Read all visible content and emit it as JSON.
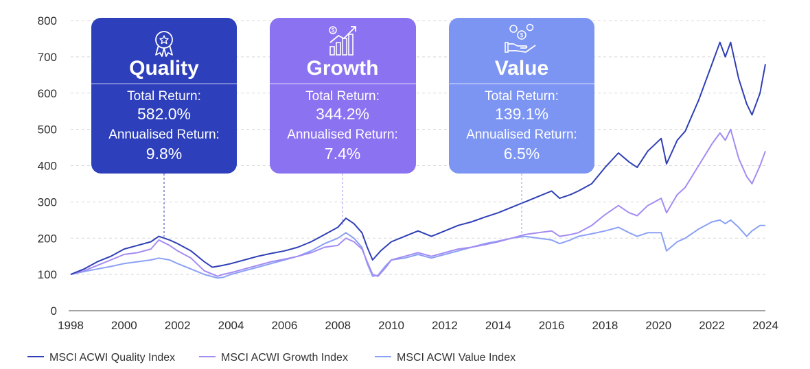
{
  "chart_data": {
    "type": "line",
    "xlim": [
      1998,
      2024
    ],
    "ylim": [
      0,
      800
    ],
    "xticks": [
      "1998",
      "2000",
      "2002",
      "2004",
      "2006",
      "2008",
      "2010",
      "2012",
      "2014",
      "2016",
      "2018",
      "2020",
      "2022",
      "2024"
    ],
    "yticks": [
      "0",
      "100",
      "200",
      "300",
      "400",
      "500",
      "600",
      "700",
      "800"
    ],
    "grid": "horizontal dashed",
    "legend": "bottom-left",
    "series": [
      {
        "name": "MSCI ACWI Quality Index",
        "color": "#2e3fb5",
        "points": [
          [
            1998,
            100
          ],
          [
            1998.5,
            115
          ],
          [
            1999,
            135
          ],
          [
            1999.5,
            150
          ],
          [
            2000,
            170
          ],
          [
            2000.5,
            180
          ],
          [
            2001,
            190
          ],
          [
            2001.3,
            205
          ],
          [
            2001.7,
            195
          ],
          [
            2002,
            185
          ],
          [
            2002.5,
            165
          ],
          [
            2003,
            135
          ],
          [
            2003.3,
            120
          ],
          [
            2003.7,
            125
          ],
          [
            2004,
            130
          ],
          [
            2004.5,
            140
          ],
          [
            2005,
            150
          ],
          [
            2005.5,
            158
          ],
          [
            2006,
            165
          ],
          [
            2006.5,
            175
          ],
          [
            2007,
            190
          ],
          [
            2007.5,
            210
          ],
          [
            2008,
            230
          ],
          [
            2008.3,
            255
          ],
          [
            2008.6,
            240
          ],
          [
            2008.9,
            215
          ],
          [
            2009.1,
            175
          ],
          [
            2009.3,
            140
          ],
          [
            2009.6,
            165
          ],
          [
            2010,
            190
          ],
          [
            2010.5,
            205
          ],
          [
            2011,
            220
          ],
          [
            2011.5,
            205
          ],
          [
            2012,
            220
          ],
          [
            2012.5,
            235
          ],
          [
            2013,
            245
          ],
          [
            2013.5,
            258
          ],
          [
            2014,
            270
          ],
          [
            2014.5,
            285
          ],
          [
            2015,
            300
          ],
          [
            2015.5,
            315
          ],
          [
            2016,
            330
          ],
          [
            2016.3,
            310
          ],
          [
            2016.7,
            320
          ],
          [
            2017,
            330
          ],
          [
            2017.5,
            350
          ],
          [
            2018,
            395
          ],
          [
            2018.5,
            435
          ],
          [
            2018.9,
            410
          ],
          [
            2019.2,
            395
          ],
          [
            2019.6,
            440
          ],
          [
            2020.1,
            475
          ],
          [
            2020.3,
            405
          ],
          [
            2020.7,
            470
          ],
          [
            2021,
            495
          ],
          [
            2021.5,
            580
          ],
          [
            2022,
            680
          ],
          [
            2022.3,
            740
          ],
          [
            2022.5,
            700
          ],
          [
            2022.7,
            740
          ],
          [
            2023,
            640
          ],
          [
            2023.3,
            570
          ],
          [
            2023.5,
            540
          ],
          [
            2023.8,
            600
          ],
          [
            2024,
            680
          ]
        ]
      },
      {
        "name": "MSCI ACWI Growth Index",
        "color": "#a48bf2",
        "points": [
          [
            1998,
            100
          ],
          [
            1998.5,
            110
          ],
          [
            1999,
            125
          ],
          [
            1999.5,
            140
          ],
          [
            2000,
            155
          ],
          [
            2000.5,
            160
          ],
          [
            2001,
            170
          ],
          [
            2001.3,
            195
          ],
          [
            2001.7,
            180
          ],
          [
            2002,
            165
          ],
          [
            2002.5,
            145
          ],
          [
            2003,
            110
          ],
          [
            2003.5,
            95
          ],
          [
            2003.7,
            100
          ],
          [
            2004,
            105
          ],
          [
            2004.5,
            115
          ],
          [
            2005,
            125
          ],
          [
            2005.5,
            135
          ],
          [
            2006,
            142
          ],
          [
            2006.5,
            150
          ],
          [
            2007,
            160
          ],
          [
            2007.5,
            175
          ],
          [
            2008,
            180
          ],
          [
            2008.3,
            200
          ],
          [
            2008.6,
            190
          ],
          [
            2008.9,
            170
          ],
          [
            2009.1,
            135
          ],
          [
            2009.3,
            100
          ],
          [
            2009.5,
            95
          ],
          [
            2009.8,
            120
          ],
          [
            2010,
            140
          ],
          [
            2010.5,
            150
          ],
          [
            2011,
            160
          ],
          [
            2011.5,
            150
          ],
          [
            2012,
            160
          ],
          [
            2012.5,
            170
          ],
          [
            2013,
            175
          ],
          [
            2013.5,
            182
          ],
          [
            2014,
            190
          ],
          [
            2014.5,
            200
          ],
          [
            2015,
            210
          ],
          [
            2015.5,
            215
          ],
          [
            2016,
            220
          ],
          [
            2016.3,
            205
          ],
          [
            2016.7,
            210
          ],
          [
            2017,
            215
          ],
          [
            2017.5,
            235
          ],
          [
            2018,
            265
          ],
          [
            2018.5,
            290
          ],
          [
            2018.9,
            270
          ],
          [
            2019.2,
            262
          ],
          [
            2019.6,
            290
          ],
          [
            2020.1,
            310
          ],
          [
            2020.3,
            270
          ],
          [
            2020.7,
            320
          ],
          [
            2021,
            340
          ],
          [
            2021.5,
            400
          ],
          [
            2022,
            460
          ],
          [
            2022.3,
            490
          ],
          [
            2022.5,
            470
          ],
          [
            2022.7,
            500
          ],
          [
            2023,
            420
          ],
          [
            2023.3,
            370
          ],
          [
            2023.5,
            350
          ],
          [
            2023.8,
            400
          ],
          [
            2024,
            440
          ]
        ]
      },
      {
        "name": "MSCI ACWI Value Index",
        "color": "#8aa0f5",
        "points": [
          [
            1998,
            100
          ],
          [
            1998.5,
            108
          ],
          [
            1999,
            115
          ],
          [
            1999.5,
            122
          ],
          [
            2000,
            130
          ],
          [
            2000.5,
            135
          ],
          [
            2001,
            140
          ],
          [
            2001.3,
            145
          ],
          [
            2001.7,
            140
          ],
          [
            2002,
            130
          ],
          [
            2002.5,
            115
          ],
          [
            2003,
            100
          ],
          [
            2003.5,
            90
          ],
          [
            2003.7,
            92
          ],
          [
            2004,
            100
          ],
          [
            2004.5,
            110
          ],
          [
            2005,
            120
          ],
          [
            2005.5,
            130
          ],
          [
            2006,
            140
          ],
          [
            2006.5,
            150
          ],
          [
            2007,
            165
          ],
          [
            2007.5,
            185
          ],
          [
            2008,
            200
          ],
          [
            2008.3,
            215
          ],
          [
            2008.6,
            200
          ],
          [
            2008.9,
            175
          ],
          [
            2009.1,
            130
          ],
          [
            2009.3,
            95
          ],
          [
            2009.5,
            98
          ],
          [
            2009.8,
            125
          ],
          [
            2010,
            140
          ],
          [
            2010.5,
            145
          ],
          [
            2011,
            155
          ],
          [
            2011.5,
            145
          ],
          [
            2012,
            155
          ],
          [
            2012.5,
            165
          ],
          [
            2013,
            175
          ],
          [
            2013.5,
            185
          ],
          [
            2014,
            192
          ],
          [
            2014.5,
            200
          ],
          [
            2015,
            205
          ],
          [
            2015.5,
            200
          ],
          [
            2016,
            195
          ],
          [
            2016.3,
            185
          ],
          [
            2016.7,
            195
          ],
          [
            2017,
            205
          ],
          [
            2017.5,
            212
          ],
          [
            2018,
            220
          ],
          [
            2018.5,
            230
          ],
          [
            2018.9,
            215
          ],
          [
            2019.2,
            205
          ],
          [
            2019.6,
            215
          ],
          [
            2020.1,
            215
          ],
          [
            2020.3,
            165
          ],
          [
            2020.7,
            190
          ],
          [
            2021,
            200
          ],
          [
            2021.5,
            225
          ],
          [
            2022,
            245
          ],
          [
            2022.3,
            250
          ],
          [
            2022.5,
            240
          ],
          [
            2022.7,
            250
          ],
          [
            2023,
            230
          ],
          [
            2023.3,
            205
          ],
          [
            2023.5,
            220
          ],
          [
            2023.8,
            235
          ],
          [
            2024,
            235
          ]
        ]
      }
    ]
  },
  "cards": [
    {
      "title": "Quality",
      "label1": "Total Return:",
      "value1": "582.0%",
      "label2": "Annualised Return:",
      "value2": "9.8%",
      "color": "#2d3fbb",
      "icon": "award-ribbon-icon"
    },
    {
      "title": "Growth",
      "label1": "Total Return:",
      "value1": "344.2%",
      "label2": "Annualised Return:",
      "value2": "7.4%",
      "color": "#8b72f0",
      "icon": "growth-bar-chart-icon"
    },
    {
      "title": "Value",
      "label1": "Total Return:",
      "value1": "139.1%",
      "label2": "Annualised Return:",
      "value2": "6.5%",
      "color": "#7c95f3",
      "icon": "money-hand-icon"
    }
  ],
  "legend": [
    {
      "label": "MSCI ACWI Quality Index",
      "color": "#2e3fb5"
    },
    {
      "label": "MSCI ACWI Growth Index",
      "color": "#a48bf2"
    },
    {
      "label": "MSCI ACWI Value Index",
      "color": "#8aa0f5"
    }
  ]
}
